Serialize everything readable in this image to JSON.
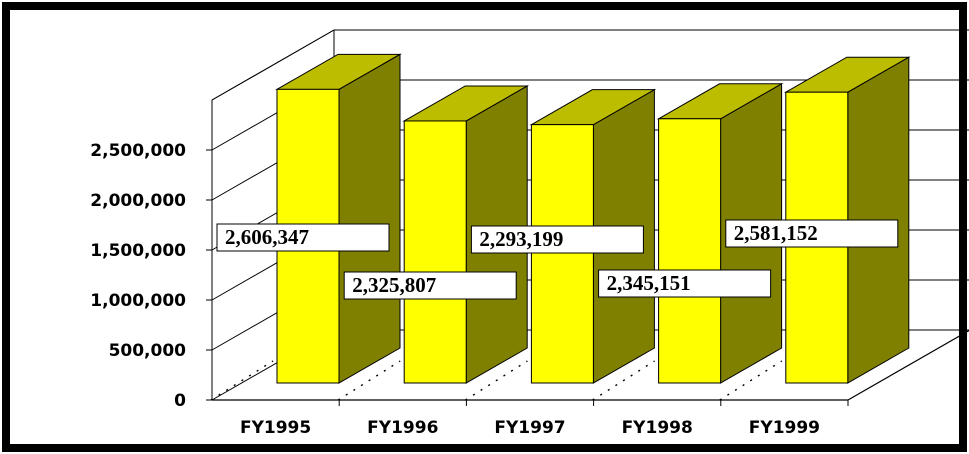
{
  "chart_data": {
    "type": "bar",
    "style": "3d",
    "categories": [
      "FY1995",
      "FY1996",
      "FY1997",
      "FY1998",
      "FY1999"
    ],
    "values": [
      2606347,
      2325807,
      2293199,
      2345151,
      2581152
    ],
    "data_labels": [
      "2,606,347",
      "2,325,807",
      "2,293,199",
      "2,345,151",
      "2,581,152"
    ],
    "y_ticks": [
      {
        "value": 0,
        "label": "0"
      },
      {
        "value": 500000,
        "label": "500,000"
      },
      {
        "value": 1000000,
        "label": "1,000,000"
      },
      {
        "value": 1500000,
        "label": "1,500,000"
      },
      {
        "value": 2000000,
        "label": "2,000,000"
      },
      {
        "value": 2500000,
        "label": "2,500,000"
      }
    ],
    "ylim": [
      0,
      3000000
    ],
    "title": "",
    "xlabel": "",
    "ylabel": "",
    "grid": true,
    "legend": "none",
    "colors": {
      "bar_front": "#ffff00",
      "bar_top": "#bdbd00",
      "bar_side": "#808000",
      "frame": "#000000",
      "label_bg": "#ffffff"
    }
  }
}
